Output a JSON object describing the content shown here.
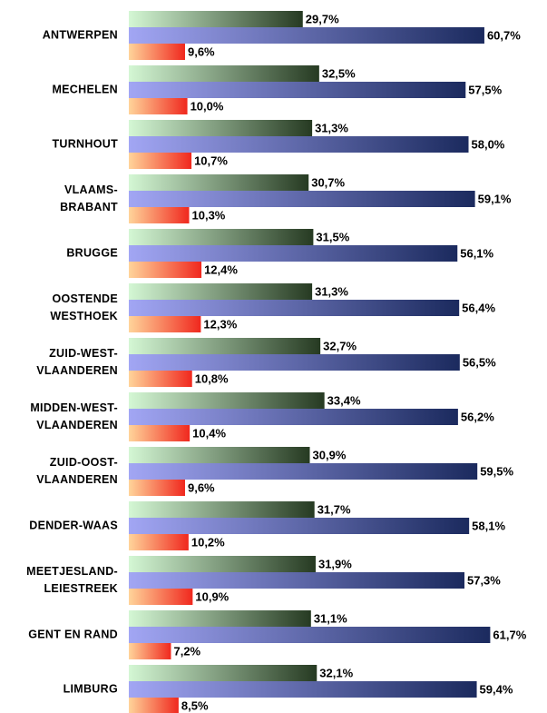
{
  "chart_data": {
    "type": "bar",
    "orientation": "horizontal",
    "categories": [
      "ANTWERPEN",
      "MECHELEN",
      "TURNHOUT",
      "VLAAMS-\nBRABANT",
      "BRUGGE",
      "OOSTENDE\nWESTHOEK",
      "ZUID-WEST-\nVLAANDEREN",
      "MIDDEN-WEST-\nVLAANDEREN",
      "ZUID-OOST-\nVLAANDEREN",
      "DENDER-WAAS",
      "MEETJESLAND-\nLEIESTREEK",
      "GENT EN RAND",
      "LIMBURG"
    ],
    "xlim": [
      0,
      70
    ],
    "series": [
      {
        "color": [
          "#d4f7d4",
          "#263a22"
        ],
        "values": [
          29.7,
          32.5,
          31.3,
          30.7,
          31.5,
          31.3,
          32.7,
          33.4,
          30.9,
          31.7,
          31.9,
          31.1,
          32.1
        ],
        "value_labels": [
          "29,7%",
          "32,5%",
          "31,3%",
          "30,7%",
          "31,5%",
          "31,3%",
          "32,7%",
          "33,4%",
          "30,9%",
          "31,7%",
          "31,9%",
          "31,1%",
          "32,1%"
        ]
      },
      {
        "color": [
          "#a2a6f4",
          "#1b2a5e"
        ],
        "values": [
          60.7,
          57.5,
          58.0,
          59.1,
          56.1,
          56.4,
          56.5,
          56.2,
          59.5,
          58.1,
          57.3,
          61.7,
          59.4
        ],
        "value_labels": [
          "60,7%",
          "57,5%",
          "58,0%",
          "59,1%",
          "56,1%",
          "56,4%",
          "56,5%",
          "56,2%",
          "59,5%",
          "58,1%",
          "57,3%",
          "61,7%",
          "59,4%"
        ]
      },
      {
        "color": [
          "#ffd49a",
          "#f0281e"
        ],
        "values": [
          9.6,
          10.0,
          10.7,
          10.3,
          12.4,
          12.3,
          10.8,
          10.4,
          9.6,
          10.2,
          10.9,
          7.2,
          8.5
        ],
        "value_labels": [
          "9,6%",
          "10,0%",
          "10,7%",
          "10,3%",
          "12,4%",
          "12,3%",
          "10,8%",
          "10,4%",
          "9,6%",
          "10,2%",
          "10,9%",
          "7,2%",
          "8,5%"
        ]
      }
    ]
  }
}
